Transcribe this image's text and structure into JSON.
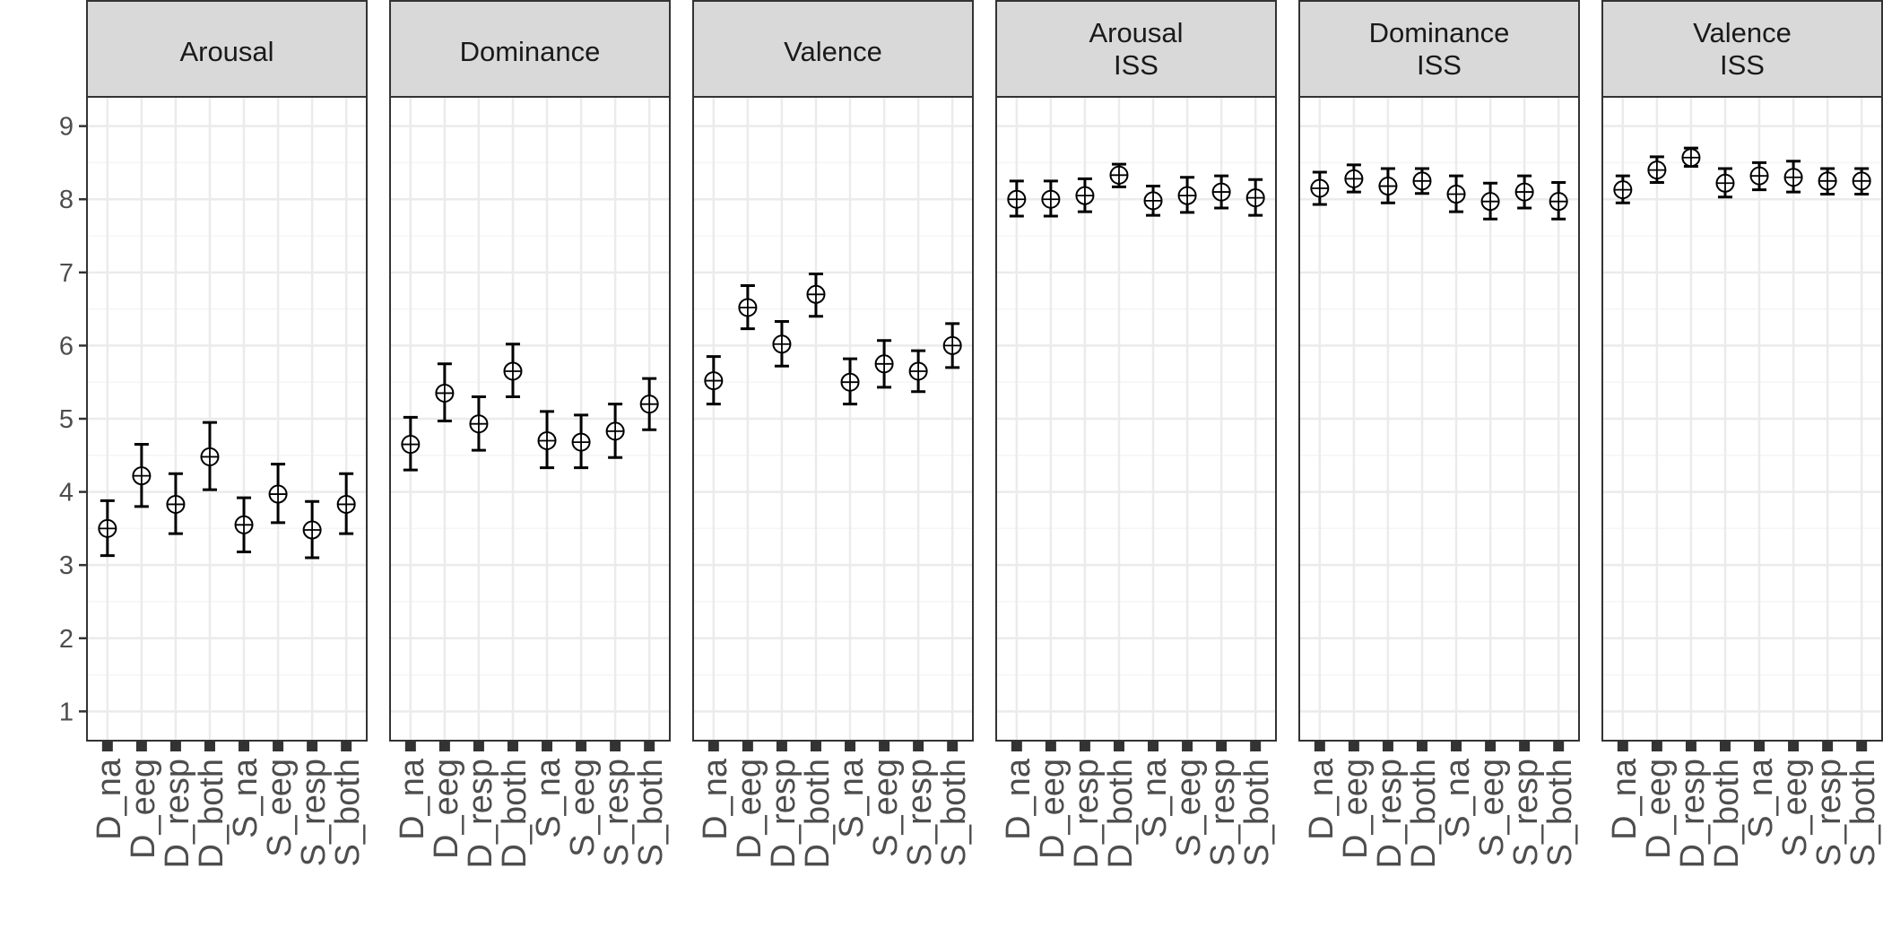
{
  "chart_data": {
    "type": "scatter",
    "subtype": "point-with-error-bars",
    "layout": "facets-1x6",
    "shared_y_axis": true,
    "ylim": [
      0.6,
      9.4
    ],
    "y_ticks": [
      1,
      2,
      3,
      4,
      5,
      6,
      7,
      8,
      9
    ],
    "xlabel": "",
    "ylabel": "",
    "title": "",
    "grid": true,
    "legend": "none",
    "point_style": "circle-with-cross",
    "colors": {
      "panel_border": "#333333",
      "strip_fill": "#d9d9d9",
      "grid_major": "#ebebeb",
      "grid_minor": "#f5f5f5",
      "marks": "#000000",
      "tick_label": "#4d4d4d"
    },
    "categories": [
      "D_na",
      "D_eeg",
      "D_resp",
      "D_both",
      "S_na",
      "S_eeg",
      "S_resp",
      "S_both"
    ],
    "facets": [
      {
        "strip": [
          "Arousal"
        ],
        "points": [
          {
            "mean": 3.5,
            "lower": 3.13,
            "upper": 3.88
          },
          {
            "mean": 4.22,
            "lower": 3.8,
            "upper": 4.65
          },
          {
            "mean": 3.83,
            "lower": 3.43,
            "upper": 4.25
          },
          {
            "mean": 4.48,
            "lower": 4.03,
            "upper": 4.95
          },
          {
            "mean": 3.55,
            "lower": 3.18,
            "upper": 3.92
          },
          {
            "mean": 3.97,
            "lower": 3.58,
            "upper": 4.38
          },
          {
            "mean": 3.48,
            "lower": 3.1,
            "upper": 3.87
          },
          {
            "mean": 3.83,
            "lower": 3.43,
            "upper": 4.25
          }
        ]
      },
      {
        "strip": [
          "Dominance"
        ],
        "points": [
          {
            "mean": 4.65,
            "lower": 4.3,
            "upper": 5.02
          },
          {
            "mean": 5.35,
            "lower": 4.97,
            "upper": 5.75
          },
          {
            "mean": 4.93,
            "lower": 4.57,
            "upper": 5.3
          },
          {
            "mean": 5.65,
            "lower": 5.3,
            "upper": 6.02
          },
          {
            "mean": 4.7,
            "lower": 4.33,
            "upper": 5.1
          },
          {
            "mean": 4.68,
            "lower": 4.33,
            "upper": 5.05
          },
          {
            "mean": 4.83,
            "lower": 4.47,
            "upper": 5.2
          },
          {
            "mean": 5.2,
            "lower": 4.85,
            "upper": 5.55
          }
        ]
      },
      {
        "strip": [
          "Valence"
        ],
        "points": [
          {
            "mean": 5.52,
            "lower": 5.2,
            "upper": 5.85
          },
          {
            "mean": 6.52,
            "lower": 6.23,
            "upper": 6.82
          },
          {
            "mean": 6.02,
            "lower": 5.72,
            "upper": 6.33
          },
          {
            "mean": 6.7,
            "lower": 6.4,
            "upper": 6.98
          },
          {
            "mean": 5.5,
            "lower": 5.2,
            "upper": 5.82
          },
          {
            "mean": 5.75,
            "lower": 5.43,
            "upper": 6.07
          },
          {
            "mean": 5.65,
            "lower": 5.37,
            "upper": 5.93
          },
          {
            "mean": 6.0,
            "lower": 5.7,
            "upper": 6.3
          }
        ]
      },
      {
        "strip": [
          "Arousal",
          "ISS"
        ],
        "points": [
          {
            "mean": 8.0,
            "lower": 7.77,
            "upper": 8.25
          },
          {
            "mean": 8.0,
            "lower": 7.77,
            "upper": 8.25
          },
          {
            "mean": 8.05,
            "lower": 7.83,
            "upper": 8.28
          },
          {
            "mean": 8.33,
            "lower": 8.17,
            "upper": 8.48
          },
          {
            "mean": 7.98,
            "lower": 7.78,
            "upper": 8.18
          },
          {
            "mean": 8.05,
            "lower": 7.82,
            "upper": 8.3
          },
          {
            "mean": 8.1,
            "lower": 7.88,
            "upper": 8.32
          },
          {
            "mean": 8.02,
            "lower": 7.78,
            "upper": 8.27
          }
        ]
      },
      {
        "strip": [
          "Dominance",
          "ISS"
        ],
        "points": [
          {
            "mean": 8.15,
            "lower": 7.93,
            "upper": 8.37
          },
          {
            "mean": 8.28,
            "lower": 8.1,
            "upper": 8.47
          },
          {
            "mean": 8.18,
            "lower": 7.95,
            "upper": 8.42
          },
          {
            "mean": 8.25,
            "lower": 8.08,
            "upper": 8.42
          },
          {
            "mean": 8.07,
            "lower": 7.83,
            "upper": 8.32
          },
          {
            "mean": 7.97,
            "lower": 7.73,
            "upper": 8.22
          },
          {
            "mean": 8.1,
            "lower": 7.88,
            "upper": 8.32
          },
          {
            "mean": 7.97,
            "lower": 7.73,
            "upper": 8.23
          }
        ]
      },
      {
        "strip": [
          "Valence",
          "ISS"
        ],
        "points": [
          {
            "mean": 8.13,
            "lower": 7.95,
            "upper": 8.32
          },
          {
            "mean": 8.4,
            "lower": 8.23,
            "upper": 8.58
          },
          {
            "mean": 8.57,
            "lower": 8.45,
            "upper": 8.7
          },
          {
            "mean": 8.22,
            "lower": 8.03,
            "upper": 8.42
          },
          {
            "mean": 8.32,
            "lower": 8.13,
            "upper": 8.5
          },
          {
            "mean": 8.3,
            "lower": 8.1,
            "upper": 8.52
          },
          {
            "mean": 8.25,
            "lower": 8.07,
            "upper": 8.42
          },
          {
            "mean": 8.25,
            "lower": 8.07,
            "upper": 8.42
          }
        ]
      }
    ]
  }
}
